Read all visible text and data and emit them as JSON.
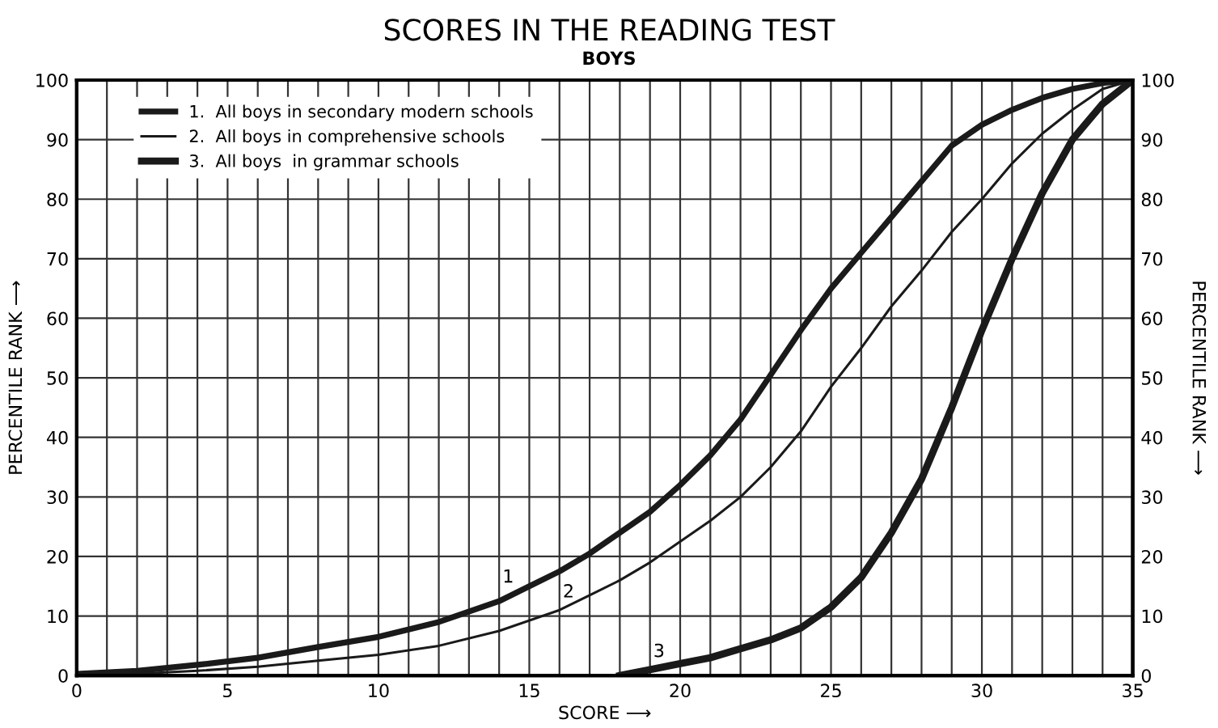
{
  "chart_data": {
    "type": "line",
    "title": "SCORES IN THE READING TEST",
    "subtitle": "BOYS",
    "xlabel": "SCORE ⟶",
    "ylabel": "PERCENTILE RANK ⟶",
    "y2label": "PERCENTILE RANK ⟶",
    "series": [
      {
        "name": "1.  All boys in secondary modern schools",
        "color": "#1a1a1a",
        "x": [
          0,
          2,
          4,
          6,
          8,
          10,
          12,
          14,
          15,
          16,
          17,
          18,
          19,
          20,
          21,
          22,
          23,
          24,
          25,
          26,
          27,
          28,
          29,
          30,
          31,
          32,
          33,
          34,
          35
        ],
        "values": [
          0.3,
          0.8,
          1.8,
          3,
          4.8,
          6.5,
          9,
          12.5,
          15,
          17.5,
          20.5,
          24,
          27.5,
          32,
          37,
          43,
          50.5,
          58,
          65,
          71,
          77,
          83,
          89,
          92.5,
          95,
          97,
          98.5,
          99.5,
          100
        ]
      },
      {
        "name": "2.  All boys in comprehensive schools",
        "color": "#1a1a1a",
        "x": [
          0,
          2,
          4,
          6,
          8,
          10,
          12,
          14,
          16,
          17,
          18,
          19,
          20,
          21,
          22,
          23,
          24,
          25,
          26,
          27,
          28,
          29,
          30,
          31,
          32,
          33,
          34,
          35
        ],
        "values": [
          0,
          0.3,
          0.8,
          1.5,
          2.5,
          3.5,
          5,
          7.5,
          11,
          13.5,
          16,
          19,
          22.5,
          26,
          30,
          35,
          41,
          48.5,
          55,
          62,
          68,
          74.5,
          80,
          86,
          91,
          95,
          98.5,
          100
        ]
      },
      {
        "name": "3.  All boys  in grammar schools",
        "color": "#1a1a1a",
        "x": [
          18,
          19,
          20,
          21,
          22,
          23,
          24,
          25,
          26,
          27,
          28,
          29,
          30,
          31,
          32,
          33,
          34,
          35
        ],
        "values": [
          0,
          1,
          2,
          3,
          4.5,
          6,
          8,
          11.5,
          16.5,
          24,
          33,
          45,
          58,
          70,
          81,
          90,
          96,
          100
        ]
      }
    ],
    "xlim": [
      0,
      35
    ],
    "ylim": [
      0,
      100
    ],
    "y2lim": [
      0,
      100
    ],
    "xticks": [
      0,
      {
        "value": 1,
        "label": null
      },
      {
        "value": 2,
        "label": null
      },
      {
        "value": 3,
        "label": null
      },
      {
        "value": 4,
        "label": null
      },
      5,
      {
        "value": 6,
        "label": null
      },
      {
        "value": 7,
        "label": null
      },
      {
        "value": 8,
        "label": null
      },
      {
        "value": 9,
        "label": null
      },
      10,
      {
        "value": 11,
        "label": null
      },
      {
        "value": 12,
        "label": null
      },
      {
        "value": 13,
        "label": null
      },
      {
        "value": 14,
        "label": null
      },
      15,
      {
        "value": 16,
        "label": null
      },
      {
        "value": 17,
        "label": null
      },
      {
        "value": 18,
        "label": null
      },
      {
        "value": 19,
        "label": null
      },
      20,
      {
        "value": 21,
        "label": null
      },
      {
        "value": 22,
        "label": null
      },
      {
        "value": 23,
        "label": null
      },
      {
        "value": 24,
        "label": null
      },
      25,
      {
        "value": 26,
        "label": null
      },
      {
        "value": 27,
        "label": null
      },
      {
        "value": 28,
        "label": null
      },
      {
        "value": 29,
        "label": null
      },
      30,
      {
        "value": 31,
        "label": null
      },
      {
        "value": 32,
        "label": null
      },
      {
        "value": 33,
        "label": null
      },
      {
        "value": 34,
        "label": null
      },
      35
    ],
    "yticks": [
      0,
      10,
      20,
      30,
      40,
      50,
      60,
      70,
      80,
      90,
      100
    ],
    "y2ticks": [
      0,
      10,
      20,
      30,
      40,
      50,
      60,
      70,
      80,
      90,
      100
    ],
    "grid": true,
    "legend": "top left",
    "line_style": "solid",
    "marker": "none",
    "annotations": [
      {
        "text": "1",
        "x": 14.3,
        "y": 15
      },
      {
        "text": "2",
        "x": 16.3,
        "y": 12.5
      },
      {
        "text": "3",
        "x": 19.3,
        "y": 2.5
      }
    ]
  }
}
